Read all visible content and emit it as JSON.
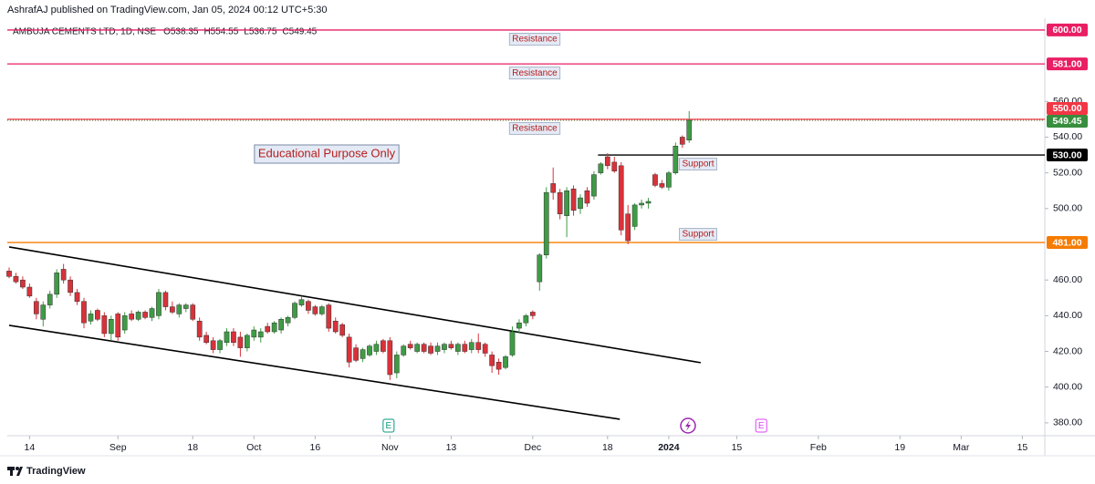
{
  "header": {
    "publisher": "AshrafAJ published on TradingView.com, Jan 05, 2024 00:12 UTC+5:30",
    "brand": "TradingView"
  },
  "chart_data": {
    "type": "candlestick",
    "symbol": "AMBUJA CEMENTS LTD, 1D, NSE",
    "ohlc_labels": [
      "O538.35",
      "H554.55",
      "L536.75",
      "C549.45"
    ],
    "annotation": "Educational Purpose Only",
    "up_color": "#3f9b45",
    "down_color": "#d8323a",
    "open": [
      465,
      462,
      460,
      456,
      448,
      438,
      446,
      452,
      466,
      460,
      453,
      448,
      437,
      443,
      440,
      430,
      441,
      432,
      441,
      438,
      442,
      439,
      440,
      453,
      445,
      441,
      444,
      446,
      437,
      429,
      426,
      421,
      425,
      431,
      428,
      422,
      428,
      428,
      434,
      431,
      432,
      436,
      439,
      446,
      448,
      445,
      441,
      446,
      437,
      435,
      428,
      422,
      416,
      418,
      420,
      426,
      426,
      408,
      418,
      424,
      420,
      424,
      423,
      420,
      421,
      424,
      420,
      424,
      421,
      425,
      424,
      418,
      414,
      411,
      418,
      433,
      436,
      442,
      459,
      474,
      514,
      509,
      496,
      511,
      500,
      510,
      507,
      520,
      529,
      526,
      524,
      497,
      490,
      502,
      503,
      519,
      514,
      512,
      520,
      540,
      538.35
    ],
    "high": [
      467,
      464,
      462,
      458,
      450,
      448,
      454,
      466,
      469,
      462,
      455,
      450,
      443,
      444,
      442,
      440,
      442,
      442,
      443,
      443,
      443,
      445,
      455,
      454,
      448,
      447,
      447,
      447,
      439,
      431,
      428,
      427,
      433,
      433,
      431,
      430,
      434,
      433,
      436,
      437,
      439,
      440,
      448,
      451,
      449,
      446,
      446,
      447,
      439,
      436,
      430,
      424,
      422,
      424,
      426,
      427,
      428,
      420,
      424,
      426,
      425,
      425,
      425,
      425,
      425,
      426,
      425,
      426,
      427,
      430,
      425,
      420,
      416,
      418,
      434,
      438,
      441,
      443,
      475,
      512,
      523,
      511,
      512,
      513,
      508,
      512,
      521,
      526,
      531,
      529,
      526,
      502,
      503,
      505,
      506,
      520,
      516,
      521,
      537,
      541,
      554.55
    ],
    "low": [
      461,
      458,
      455,
      450,
      438,
      434,
      444,
      450,
      458,
      451,
      446,
      433,
      435,
      437,
      428,
      426,
      426,
      430,
      437,
      437,
      438,
      437,
      438,
      443,
      441,
      439,
      442,
      437,
      426,
      424,
      419,
      419,
      423,
      423,
      417,
      420,
      426,
      425,
      430,
      430,
      430,
      434,
      438,
      445,
      441,
      440,
      440,
      431,
      430,
      428,
      411,
      414,
      414,
      417,
      418,
      419,
      404,
      405,
      417,
      421,
      419,
      419,
      418,
      418,
      419,
      421,
      418,
      419,
      419,
      419,
      417,
      408,
      407,
      410,
      417,
      430,
      434,
      438,
      454,
      472,
      505,
      494,
      484,
      496,
      497,
      501,
      505,
      519,
      522,
      520,
      485,
      480,
      488,
      500,
      500,
      512,
      511,
      510,
      519,
      534,
      536.75
    ],
    "close": [
      462,
      459,
      456,
      451,
      441,
      446,
      452,
      464,
      460,
      453,
      448,
      436,
      441,
      438,
      430,
      438,
      428,
      440,
      438,
      442,
      439,
      444,
      453,
      445,
      442,
      446,
      446,
      438,
      428,
      425,
      421,
      426,
      431,
      425,
      422,
      429,
      432,
      431,
      431,
      436,
      438,
      439,
      447,
      449,
      443,
      441,
      445,
      433,
      431,
      429,
      414,
      415,
      421,
      423,
      424,
      420,
      407,
      418,
      423,
      422,
      424,
      420,
      419,
      423,
      424,
      422,
      424,
      420,
      425,
      421,
      419,
      412,
      410,
      417,
      431,
      436,
      440,
      440,
      474,
      509,
      509,
      497,
      510,
      499,
      506,
      503,
      519,
      525,
      524,
      521,
      488,
      482,
      502,
      503,
      504,
      513,
      512,
      520,
      535,
      536,
      549.45
    ],
    "xlim": [
      -0.27,
      152.3
    ],
    "xticks": [
      {
        "value": 3,
        "label": "14"
      },
      {
        "value": 16,
        "label": "Sep"
      },
      {
        "value": 27,
        "label": "18"
      },
      {
        "value": 36,
        "label": "Oct"
      },
      {
        "value": 45,
        "label": "16"
      },
      {
        "value": 56,
        "label": "Nov"
      },
      {
        "value": 65,
        "label": "13"
      },
      {
        "value": 77,
        "label": "Dec"
      },
      {
        "value": 88,
        "label": "18"
      },
      {
        "value": 97,
        "label": "2024"
      },
      {
        "value": 107,
        "label": "15"
      },
      {
        "value": 119,
        "label": "Feb"
      },
      {
        "value": 131,
        "label": "19"
      },
      {
        "value": 140,
        "label": "Mar"
      },
      {
        "value": 149,
        "label": "15"
      }
    ],
    "ylim": [
      372.8,
      606.6
    ],
    "yticks": [
      {
        "value": 380,
        "label": "380.00"
      },
      {
        "value": 400,
        "label": "400.00"
      },
      {
        "value": 420,
        "label": "420.00"
      },
      {
        "value": 440,
        "label": "440.00"
      },
      {
        "value": 460,
        "label": "460.00"
      },
      {
        "value": 500,
        "label": "500.00"
      },
      {
        "value": 520,
        "label": "520.00"
      },
      {
        "value": 540,
        "label": "540.00"
      },
      {
        "value": 560,
        "label": "560.00"
      }
    ],
    "levels": [
      {
        "price": 600,
        "label": "600.00",
        "color": "#e91e63",
        "tag": "Resistance",
        "tag_position": "below",
        "style": "solid"
      },
      {
        "price": 581,
        "label": "581.00",
        "color": "#e91e63",
        "tag": "Resistance",
        "tag_position": "below",
        "style": "solid"
      },
      {
        "price": 550,
        "label": "550.00",
        "color": "#f23645",
        "tag": "Resistance",
        "tag_position": "below",
        "style": "solid"
      },
      {
        "price": 549.45,
        "label": "549.45",
        "color": "#388e3c",
        "style": "dotted"
      },
      {
        "price": 530,
        "label": "530.00",
        "color": "#000000",
        "tag": "Support",
        "tag_position": "below",
        "style": "solid",
        "from": 86.6
      },
      {
        "price": 481,
        "label": "481.00",
        "color": "#f57c00",
        "tag": "Support",
        "tag_position": "above",
        "style": "solid"
      }
    ],
    "trendlines": [
      {
        "x": [
          0,
          101.7
        ],
        "y": [
          478.5,
          413.7
        ],
        "color": "#000000"
      },
      {
        "x": [
          0,
          89.8
        ],
        "y": [
          434.6,
          382.0
        ],
        "color": "#000000"
      }
    ],
    "events": [
      {
        "x": 55.8,
        "label": "E",
        "color": "#089981"
      },
      {
        "x": 110.6,
        "label": "E",
        "color": "#e040fb"
      }
    ]
  }
}
